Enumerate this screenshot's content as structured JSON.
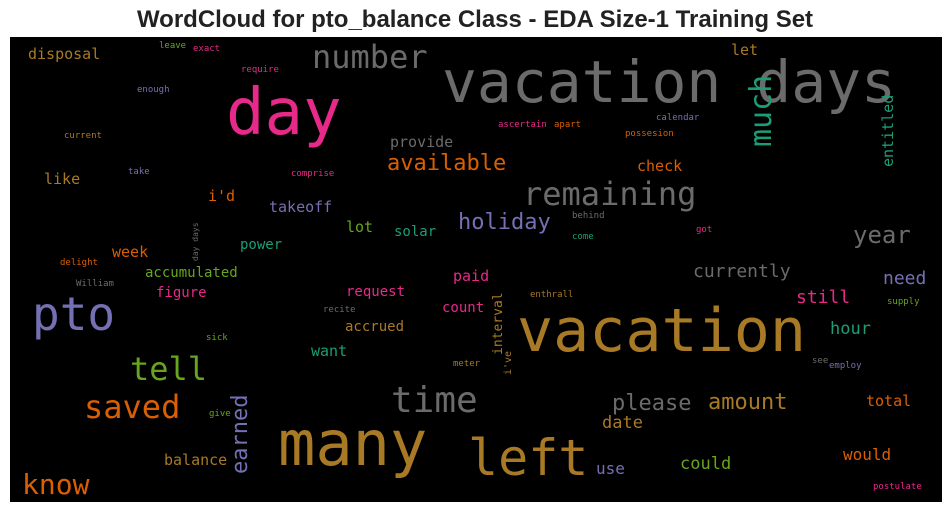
{
  "chart_data": {
    "type": "wordcloud",
    "title": "WordCloud for pto_balance Class - EDA Size-1 Training Set",
    "background": "#000000",
    "palette": {
      "gray": "#6b6b6b",
      "brown": "#a97a26",
      "magenta": "#e7298a",
      "purple": "#7570b3",
      "teal": "#1b9e77",
      "orange": "#d95f02",
      "green": "#66a61e"
    },
    "words": [
      {
        "text": "vacation",
        "color": "#a97a26"
      },
      {
        "text": "vacation days",
        "color": "#6b6b6b"
      },
      {
        "text": "many",
        "color": "#a97a26"
      },
      {
        "text": "day",
        "color": "#e7298a"
      },
      {
        "text": "left",
        "color": "#a97a26"
      },
      {
        "text": "pto",
        "color": "#7570b3"
      },
      {
        "text": "time",
        "color": "#6b6b6b"
      },
      {
        "text": "number",
        "color": "#6b6b6b"
      },
      {
        "text": "remaining",
        "color": "#6b6b6b"
      },
      {
        "text": "much",
        "color": "#1b9e77"
      },
      {
        "text": "saved",
        "color": "#d95f02"
      },
      {
        "text": "tell",
        "color": "#66a61e"
      },
      {
        "text": "know",
        "color": "#d95f02"
      },
      {
        "text": "available",
        "color": "#d95f02"
      },
      {
        "text": "holiday",
        "color": "#7570b3"
      },
      {
        "text": "year",
        "color": "#6b6b6b"
      },
      {
        "text": "please",
        "color": "#6b6b6b"
      },
      {
        "text": "amount",
        "color": "#a97a26"
      },
      {
        "text": "earned",
        "color": "#7570b3"
      },
      {
        "text": "currently",
        "color": "#6b6b6b"
      },
      {
        "text": "still",
        "color": "#e7298a"
      },
      {
        "text": "need",
        "color": "#7570b3"
      },
      {
        "text": "hour",
        "color": "#1b9e77"
      },
      {
        "text": "date",
        "color": "#a97a26"
      },
      {
        "text": "could",
        "color": "#66a61e"
      },
      {
        "text": "would",
        "color": "#d95f02"
      },
      {
        "text": "total",
        "color": "#d95f02"
      },
      {
        "text": "use",
        "color": "#7570b3"
      },
      {
        "text": "balance",
        "color": "#a97a26"
      },
      {
        "text": "provide",
        "color": "#6b6b6b"
      },
      {
        "text": "check",
        "color": "#d95f02"
      },
      {
        "text": "entitled",
        "color": "#1b9e77"
      },
      {
        "text": "let",
        "color": "#a97a26"
      },
      {
        "text": "disposal",
        "color": "#a97a26"
      },
      {
        "text": "i'd",
        "color": "#d95f02"
      },
      {
        "text": "takeoff",
        "color": "#7570b3"
      },
      {
        "text": "like",
        "color": "#a97a26"
      },
      {
        "text": "lot",
        "color": "#66a61e"
      },
      {
        "text": "solar",
        "color": "#1b9e77"
      },
      {
        "text": "power",
        "color": "#1b9e77"
      },
      {
        "text": "week",
        "color": "#d95f02"
      },
      {
        "text": "accumulated",
        "color": "#66a61e"
      },
      {
        "text": "figure",
        "color": "#e7298a"
      },
      {
        "text": "paid",
        "color": "#e7298a"
      },
      {
        "text": "request",
        "color": "#e7298a"
      },
      {
        "text": "count",
        "color": "#e7298a"
      },
      {
        "text": "accrued",
        "color": "#a97a26"
      },
      {
        "text": "want",
        "color": "#1b9e77"
      },
      {
        "text": "interval",
        "color": "#a97a26"
      },
      {
        "text": "i've",
        "color": "#a97a26"
      },
      {
        "text": "leave",
        "color": "#66a61e"
      },
      {
        "text": "exact",
        "color": "#e7298a"
      },
      {
        "text": "require",
        "color": "#e7298a"
      },
      {
        "text": "enough",
        "color": "#7570b3"
      },
      {
        "text": "current",
        "color": "#a97a26"
      },
      {
        "text": "take",
        "color": "#7570b3"
      },
      {
        "text": "comprise",
        "color": "#e7298a"
      },
      {
        "text": "ascertain",
        "color": "#e7298a"
      },
      {
        "text": "apart",
        "color": "#d95f02"
      },
      {
        "text": "calendar",
        "color": "#7570b3"
      },
      {
        "text": "possesion",
        "color": "#d95f02"
      },
      {
        "text": "behind",
        "color": "#6b6b6b"
      },
      {
        "text": "come",
        "color": "#1b9e77"
      },
      {
        "text": "got",
        "color": "#e7298a"
      },
      {
        "text": "day days",
        "color": "#6b6b6b"
      },
      {
        "text": "delight",
        "color": "#d95f02"
      },
      {
        "text": "William",
        "color": "#6b6b6b"
      },
      {
        "text": "recite",
        "color": "#6b6b6b"
      },
      {
        "text": "sick",
        "color": "#66a61e"
      },
      {
        "text": "give",
        "color": "#66a61e"
      },
      {
        "text": "enthrall",
        "color": "#a97a26"
      },
      {
        "text": "supply",
        "color": "#66a61e"
      },
      {
        "text": "see",
        "color": "#6b6b6b"
      },
      {
        "text": "employ",
        "color": "#7570b3"
      },
      {
        "text": "meter",
        "color": "#a97a26"
      },
      {
        "text": "postulate",
        "color": "#e7298a"
      }
    ]
  }
}
